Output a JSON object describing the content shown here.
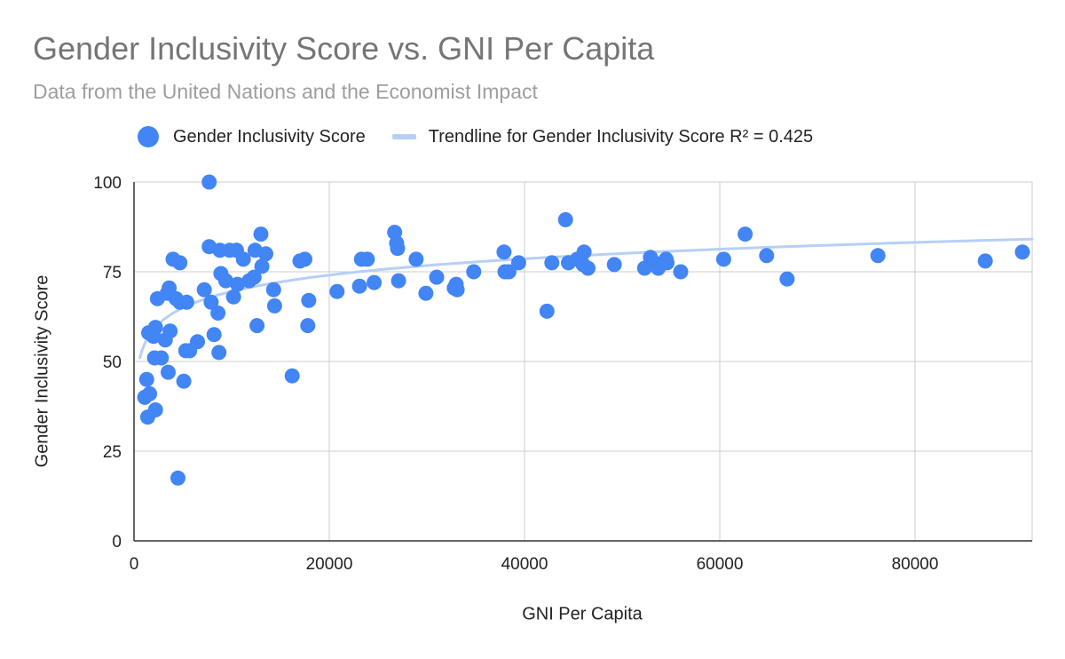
{
  "chart_data": {
    "type": "scatter",
    "title": "Gender Inclusivity Score vs. GNI Per Capita",
    "subtitle": "Data from the United Nations and the Economist Impact",
    "xlabel": "GNI Per Capita",
    "ylabel": "Gender Inclusivity Score",
    "xlim": [
      0,
      92000
    ],
    "ylim": [
      0,
      100
    ],
    "xticks": [
      0,
      20000,
      40000,
      60000,
      80000
    ],
    "yticks": [
      0,
      25,
      50,
      75,
      100
    ],
    "grid": true,
    "legend_position": "top",
    "colors": {
      "points": "#4285f4",
      "trendline": "#b7cff7",
      "grid": "#cccccc",
      "axis": "#333333"
    },
    "series": [
      {
        "name": "Gender Inclusivity Score",
        "points": [
          [
            1100,
            40
          ],
          [
            1300,
            45
          ],
          [
            1600,
            41
          ],
          [
            1400,
            34.5
          ],
          [
            1500,
            58
          ],
          [
            2000,
            57
          ],
          [
            2100,
            51
          ],
          [
            2200,
            59.5
          ],
          [
            2200,
            36.5
          ],
          [
            2400,
            67.5
          ],
          [
            2800,
            51
          ],
          [
            3200,
            56
          ],
          [
            3400,
            69
          ],
          [
            3500,
            47
          ],
          [
            3600,
            70.5
          ],
          [
            3700,
            58.5
          ],
          [
            4000,
            78.5
          ],
          [
            4300,
            67.5
          ],
          [
            4500,
            17.5
          ],
          [
            4700,
            66.5
          ],
          [
            4700,
            77.5
          ],
          [
            5100,
            44.5
          ],
          [
            5300,
            53
          ],
          [
            5400,
            66.5
          ],
          [
            5700,
            53
          ],
          [
            6500,
            55.5
          ],
          [
            7200,
            70
          ],
          [
            7700,
            100
          ],
          [
            7700,
            82
          ],
          [
            7900,
            66.5
          ],
          [
            8200,
            57.5
          ],
          [
            8600,
            63.5
          ],
          [
            8700,
            52.5
          ],
          [
            8800,
            81
          ],
          [
            8900,
            74.5
          ],
          [
            9400,
            72.5
          ],
          [
            9800,
            81
          ],
          [
            10200,
            68
          ],
          [
            10500,
            81
          ],
          [
            10600,
            71.5
          ],
          [
            11200,
            78.5
          ],
          [
            11800,
            72.5
          ],
          [
            12300,
            73.5
          ],
          [
            12400,
            81
          ],
          [
            12600,
            60
          ],
          [
            13000,
            85.5
          ],
          [
            13100,
            76.5
          ],
          [
            13500,
            80
          ],
          [
            14300,
            70
          ],
          [
            14400,
            65.5
          ],
          [
            16200,
            46
          ],
          [
            17000,
            78
          ],
          [
            17500,
            78.5
          ],
          [
            17800,
            60
          ],
          [
            17900,
            67
          ],
          [
            20800,
            69.5
          ],
          [
            23100,
            71
          ],
          [
            23300,
            78.5
          ],
          [
            23900,
            78.5
          ],
          [
            24600,
            72
          ],
          [
            26700,
            86
          ],
          [
            26900,
            83
          ],
          [
            27000,
            81.5
          ],
          [
            27100,
            72.5
          ],
          [
            28900,
            78.5
          ],
          [
            29900,
            69
          ],
          [
            31000,
            73.5
          ],
          [
            32800,
            70.5
          ],
          [
            33000,
            71.5
          ],
          [
            33100,
            70
          ],
          [
            34800,
            75
          ],
          [
            37900,
            80.5
          ],
          [
            38000,
            75
          ],
          [
            38400,
            75
          ],
          [
            39400,
            77.5
          ],
          [
            42300,
            64
          ],
          [
            42800,
            77.5
          ],
          [
            44200,
            89.5
          ],
          [
            44500,
            77.5
          ],
          [
            45400,
            78.5
          ],
          [
            46000,
            77
          ],
          [
            46100,
            80.5
          ],
          [
            46500,
            76
          ],
          [
            49200,
            77
          ],
          [
            52300,
            76
          ],
          [
            52900,
            79
          ],
          [
            53300,
            77.5
          ],
          [
            53700,
            76
          ],
          [
            54500,
            78.5
          ],
          [
            54600,
            77.5
          ],
          [
            56000,
            75
          ],
          [
            60400,
            78.5
          ],
          [
            62600,
            85.5
          ],
          [
            64800,
            79.5
          ],
          [
            66900,
            73
          ],
          [
            76200,
            79.5
          ],
          [
            87200,
            78
          ],
          [
            91000,
            80.5
          ]
        ]
      },
      {
        "name": "Trendline for Gender Inclusivity Score R² = 0.425",
        "fit": "logarithmic",
        "r_squared": 0.425,
        "equation": {
          "a": 6.58,
          "b": 8.9
        }
      }
    ]
  }
}
